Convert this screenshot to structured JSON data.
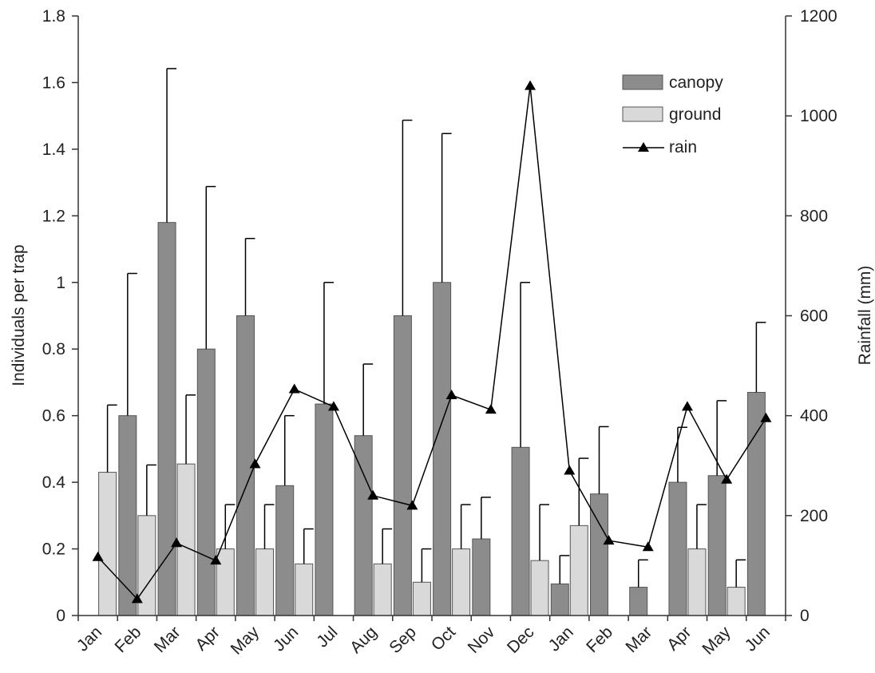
{
  "chart_data": {
    "type": "bar",
    "categories": [
      "Jan",
      "Feb",
      "Mar",
      "Apr",
      "May",
      "Jun",
      "Jul",
      "Aug",
      "Sep",
      "Oct",
      "Nov",
      "Dec",
      "Jan",
      "Feb",
      "Mar",
      "Apr",
      "May",
      "Jun"
    ],
    "series": [
      {
        "name": "canopy",
        "kind": "bar",
        "axis": "left",
        "color": "#8c8c8c",
        "values": [
          0,
          0.6,
          1.18,
          0.8,
          0.9,
          0.39,
          0.635,
          0.54,
          0.9,
          1.0,
          0.23,
          0.505,
          0.095,
          0.365,
          0.085,
          0.4,
          0.42,
          0.67
        ],
        "error_upper": [
          null,
          1.027,
          1.642,
          1.288,
          1.132,
          0.6,
          1.0,
          0.755,
          1.487,
          1.447,
          0.355,
          1.0,
          0.18,
          0.567,
          0.167,
          0.565,
          0.645,
          0.88
        ]
      },
      {
        "name": "ground",
        "kind": "bar",
        "axis": "left",
        "color": "#d9d9d9",
        "values": [
          0.43,
          0.3,
          0.455,
          0.2,
          0.2,
          0.155,
          0,
          0.155,
          0.1,
          0.2,
          0,
          0.165,
          0.27,
          0,
          0,
          0.2,
          0.085,
          0
        ],
        "error_upper": [
          0.632,
          0.452,
          0.662,
          0.333,
          0.333,
          0.26,
          null,
          0.26,
          0.2,
          0.333,
          null,
          0.333,
          0.472,
          null,
          null,
          0.333,
          0.167,
          null
        ]
      },
      {
        "name": "rain",
        "kind": "line",
        "axis": "right",
        "color": "#000000",
        "marker": "triangle",
        "values": [
          117,
          33,
          145,
          110,
          303,
          453,
          418,
          240,
          220,
          441,
          412,
          1060,
          290,
          150,
          137,
          418,
          272,
          395
        ]
      }
    ],
    "ylabel": "Individuals per trap",
    "ylabel_right": "Rainfall (mm)",
    "ylim": [
      0,
      1.8
    ],
    "ylim_right": [
      0,
      1200
    ],
    "yticks": [
      "0",
      "0.2",
      "0.4",
      "0.6",
      "0.8",
      "1",
      "1.2",
      "1.4",
      "1.6",
      "1.8"
    ],
    "yticks_right": [
      "0",
      "200",
      "400",
      "600",
      "800",
      "1000",
      "1200"
    ],
    "grid": false,
    "legend_position": "top-right"
  }
}
